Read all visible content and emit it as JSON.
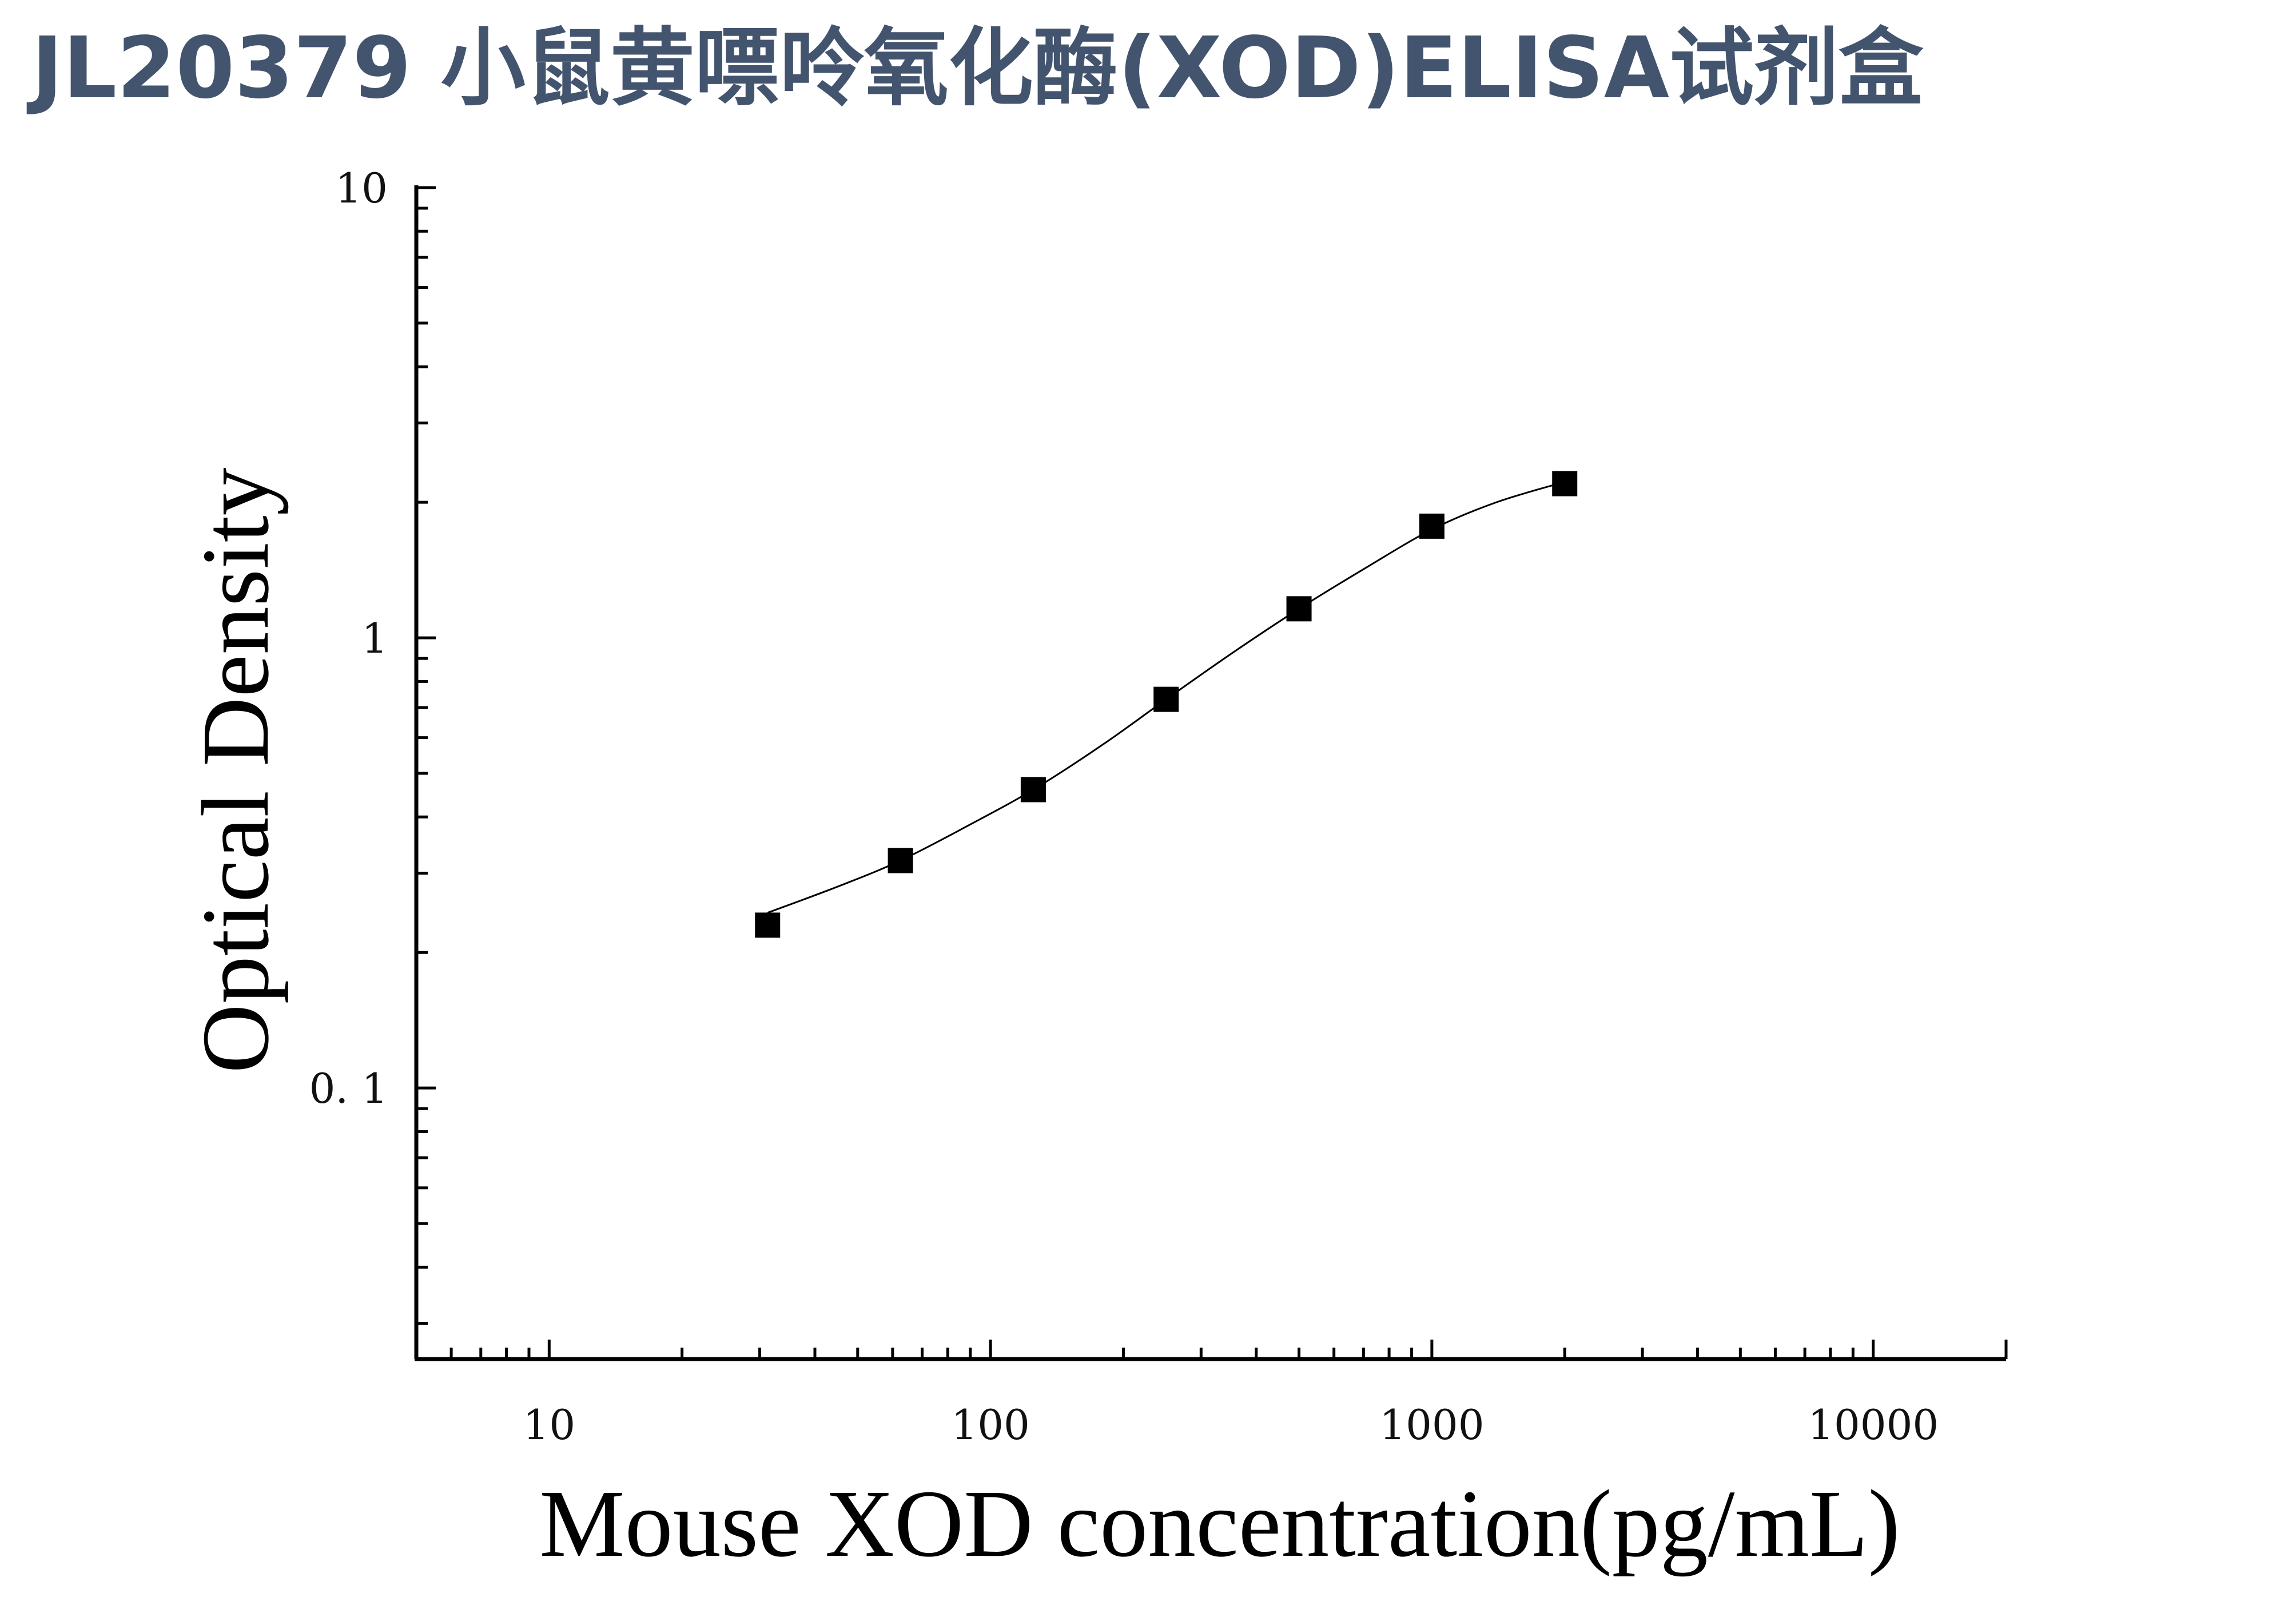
{
  "title": "JL20379 小鼠黄嘌呤氧化酶(XOD)ELISA试剂盒",
  "colors": {
    "title": "#43546e",
    "axis": "#000000",
    "marker": "#000000",
    "curve": "#000000"
  },
  "chart_data": {
    "type": "scatter",
    "xlabel": "Mouse XOD concentration(pg/mL)",
    "ylabel": "Optical Density",
    "xscale": "log",
    "yscale": "log",
    "xlim": [
      5,
      20000
    ],
    "ylim": [
      0.025,
      10
    ],
    "xticks": [
      {
        "value": 10,
        "label": "10"
      },
      {
        "value": 100,
        "label": "100"
      },
      {
        "value": 1000,
        "label": "1000"
      },
      {
        "value": 10000,
        "label": "10000"
      }
    ],
    "yticks": [
      {
        "value": 0.1,
        "label": "0. 1"
      },
      {
        "value": 1,
        "label": "1"
      },
      {
        "value": 10,
        "label": "10"
      }
    ],
    "grid": false,
    "legend": "none",
    "marker": "square",
    "series": [
      {
        "x": [
          31.25,
          62.5,
          125,
          250,
          500,
          1000,
          2000
        ],
        "y": [
          0.23,
          0.32,
          0.46,
          0.73,
          1.16,
          1.77,
          2.2
        ]
      }
    ],
    "fit_curve": {
      "x": [
        31.25,
        45,
        62.5,
        90,
        125,
        180,
        250,
        350,
        500,
        700,
        1000,
        1400,
        2000
      ],
      "y": [
        0.245,
        0.28,
        0.32,
        0.385,
        0.46,
        0.58,
        0.73,
        0.92,
        1.16,
        1.42,
        1.74,
        2.0,
        2.22
      ]
    }
  }
}
